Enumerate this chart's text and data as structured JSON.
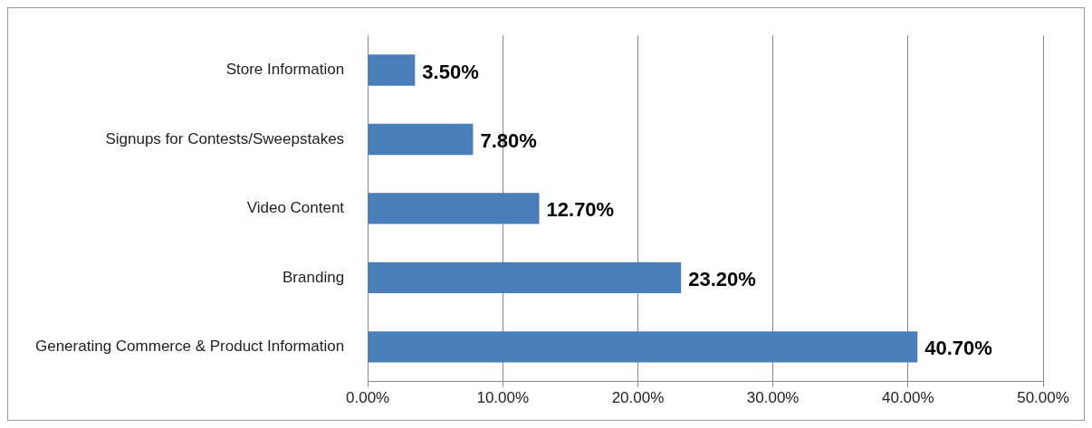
{
  "chart_data": {
    "type": "bar",
    "orientation": "horizontal",
    "categories": [
      "Store Information",
      "Signups for Contests/Sweepstakes",
      "Video Content",
      "Branding",
      "Generating Commerce & Product Information"
    ],
    "values": [
      3.5,
      7.8,
      12.7,
      23.2,
      40.7
    ],
    "value_labels": [
      "3.50%",
      "7.80%",
      "12.70%",
      "23.20%",
      "40.70%"
    ],
    "color": "#4a7ebb",
    "xlim": [
      0,
      50
    ],
    "xticks": [
      {
        "value": 0,
        "label": "0.00%"
      },
      {
        "value": 10,
        "label": "10.00%"
      },
      {
        "value": 20,
        "label": "20.00%"
      },
      {
        "value": 30,
        "label": "30.00%"
      },
      {
        "value": 40,
        "label": "40.00%"
      },
      {
        "value": 50,
        "label": "50.00%"
      }
    ],
    "grid": "x"
  }
}
